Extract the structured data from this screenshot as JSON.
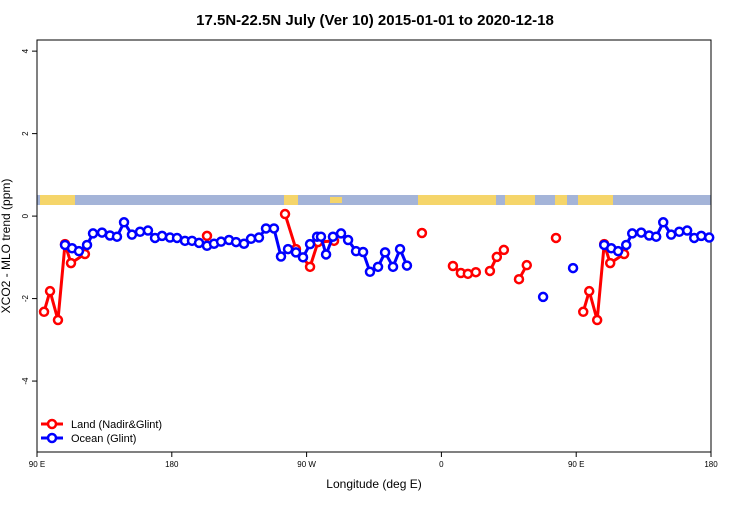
{
  "chart_data": {
    "type": "line",
    "title": "17.5N-22.5N July (Ver 10)   2015-01-01 to 2020-12-18",
    "x_label": "Longitude (deg E)",
    "y_label": "XCO2 - MLO trend (ppm)",
    "xlim": [
      90,
      540
    ],
    "ylim": [
      -5.72,
      4.27
    ],
    "xticks": [
      {
        "value": 90,
        "label": "90 E"
      },
      180,
      {
        "value": 270,
        "label": "90 W"
      },
      {
        "value": 360,
        "label": "0"
      },
      {
        "value": 450,
        "label": "90 E"
      },
      {
        "value": 540,
        "label": "180"
      }
    ],
    "yticks": [
      -4,
      -2,
      0,
      2,
      4
    ],
    "legend": "bottomleft",
    "series": [
      {
        "name": "Land (Nadir&Glint)",
        "color": "#ff0000",
        "x": [
          94.7,
          98.7,
          104,
          108.7,
          112.7,
          122,
          null,
          203.5,
          null,
          255.6,
          262.9,
          272.3,
          277.6,
          288.3,
          null,
          347,
          null,
          367.7,
          373,
          377.7,
          383,
          null,
          392.4,
          397,
          401.7,
          null,
          411.8,
          417,
          null,
          436.5,
          null,
          454.7,
          458.7,
          464,
          468.7,
          472.7,
          482
        ],
        "values": [
          -2.32,
          -1.82,
          -2.52,
          -0.68,
          -1.14,
          -0.92,
          null,
          -0.48,
          null,
          0.05,
          -0.8,
          -1.23,
          -0.63,
          -0.6,
          null,
          -0.41,
          null,
          -1.21,
          -1.38,
          -1.4,
          -1.36,
          null,
          -1.33,
          -0.99,
          -0.82,
          null,
          -1.53,
          -1.19,
          null,
          -0.53,
          null,
          -2.32,
          -1.82,
          -2.52,
          -0.68,
          -1.14,
          -0.92
        ]
      },
      {
        "name": "Ocean (Glint)",
        "color": "#0000ff",
        "x": [
          108.7,
          113.4,
          118,
          123.4,
          127.4,
          133.4,
          138.7,
          143.4,
          148.1,
          153.4,
          158.8,
          164.1,
          168.8,
          173.5,
          178.8,
          183.5,
          188.8,
          193.5,
          198.2,
          203.5,
          208.2,
          212.9,
          218.2,
          222.9,
          228.2,
          232.9,
          238.2,
          242.9,
          248.2,
          252.9,
          257.6,
          262.9,
          267.6,
          272.3,
          277,
          279.6,
          283,
          287.6,
          293,
          297.7,
          303,
          307.7,
          312.3,
          317.7,
          322.4,
          327.7,
          332.4,
          337,
          null,
          427.9,
          null,
          447.9,
          null,
          468.7,
          473.4,
          478,
          483.4,
          487.4,
          493.4,
          498.7,
          503.4,
          508.1,
          513.4,
          518.8,
          524.1,
          528.8,
          533.5,
          538.8
        ],
        "values": [
          -0.7,
          -0.78,
          -0.85,
          -0.7,
          -0.42,
          -0.4,
          -0.47,
          -0.5,
          -0.15,
          -0.45,
          -0.38,
          -0.35,
          -0.53,
          -0.48,
          -0.52,
          -0.53,
          -0.6,
          -0.6,
          -0.65,
          -0.72,
          -0.67,
          -0.62,
          -0.58,
          -0.63,
          -0.67,
          -0.55,
          -0.52,
          -0.3,
          -0.3,
          -0.98,
          -0.8,
          -0.88,
          -1.0,
          -0.68,
          -0.5,
          -0.5,
          -0.93,
          -0.5,
          -0.42,
          -0.58,
          -0.85,
          -0.87,
          -1.35,
          -1.23,
          -0.88,
          -1.23,
          -0.8,
          -1.2,
          null,
          -1.96,
          null,
          -1.26,
          null,
          -0.7,
          -0.78,
          -0.85,
          -0.7,
          -0.42,
          -0.4,
          -0.47,
          -0.5,
          -0.15,
          -0.45,
          -0.38,
          -0.35,
          -0.53,
          -0.48,
          -0.52
        ]
      }
    ]
  }
}
